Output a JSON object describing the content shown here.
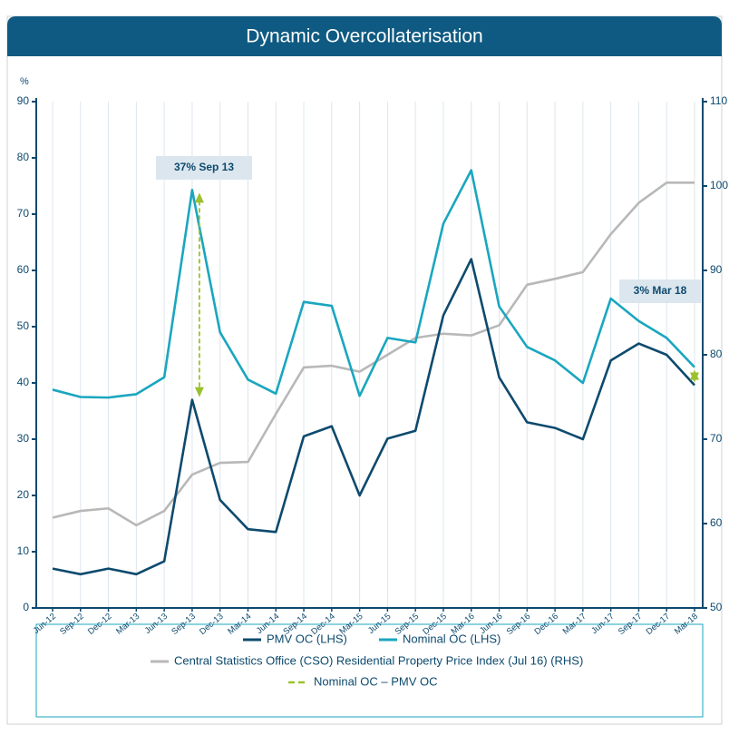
{
  "chart_data": {
    "type": "line",
    "title": "Dynamic Overcollaterisation",
    "y_label": "%",
    "categories": [
      "Jun-12",
      "Sep-12",
      "Dec-12",
      "Mar-13",
      "Jun-13",
      "Sep-13",
      "Dec-13",
      "Mar-14",
      "Jun-14",
      "Sep-14",
      "Dec-14",
      "Mar-15",
      "Jun-15",
      "Sep-15",
      "Dec-15",
      "Mar-16",
      "Jun-16",
      "Sep-16",
      "Dec-16",
      "Mar-17",
      "Jun-17",
      "Sep-17",
      "Dec-17",
      "Mar-18"
    ],
    "series": [
      {
        "name": "PMV OC (LHS)",
        "color": "#0d4a6e",
        "values": [
          7,
          6,
          7,
          6,
          8.3,
          37,
          19.2,
          14,
          13.5,
          30.5,
          32.3,
          20,
          30.1,
          31.5,
          52,
          62,
          41,
          33,
          32,
          30,
          44,
          47,
          45,
          39.6
        ]
      },
      {
        "name": "Nominal OC (LHS)",
        "color": "#1aa6bf",
        "values": [
          38.8,
          37.5,
          37.4,
          38,
          41,
          74.3,
          49,
          40.6,
          38.1,
          54.4,
          53.7,
          37.7,
          48,
          47.2,
          68.3,
          77.8,
          53.6,
          46.4,
          44,
          40,
          55,
          51,
          48,
          42.8
        ]
      },
      {
        "name": "Central Statistics Office (CSO) Residential Property Price Index (Jul 16) (RHS)",
        "color": "#b8b8b8",
        "axis": "y2",
        "values": [
          60.7,
          61.5,
          61.8,
          59.8,
          61.5,
          65.8,
          67.2,
          67.3,
          73,
          78.5,
          78.7,
          78,
          80,
          82,
          82.5,
          82.3,
          83.5,
          88.3,
          89,
          89.8,
          94.3,
          98,
          100.4,
          100.4
        ]
      }
    ],
    "difference": {
      "name": "Nominal OC – PMV OC",
      "color": "#9bc12d"
    },
    "annotations": [
      "37% Sep 13",
      "3% Mar 18"
    ],
    "ylim": [
      0,
      90
    ],
    "yticks": [
      0,
      10,
      20,
      30,
      40,
      50,
      60,
      70,
      80,
      90
    ],
    "y2lim": [
      50,
      110
    ],
    "y2ticks": [
      50,
      60,
      70,
      80,
      90,
      100,
      110
    ],
    "grid": "x"
  }
}
